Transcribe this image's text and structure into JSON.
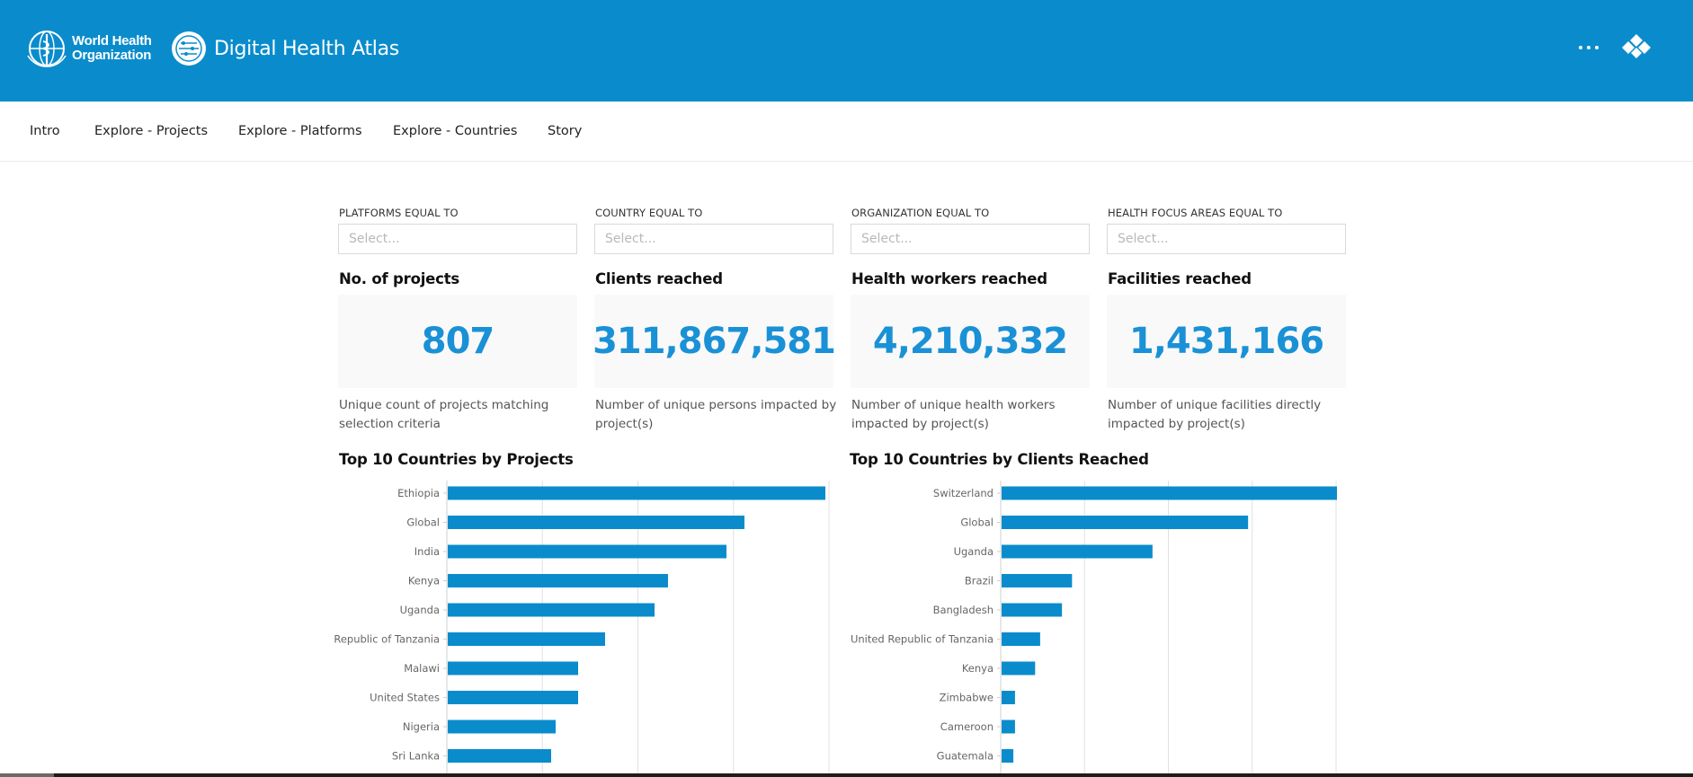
{
  "header": {
    "who_line1": "World Health",
    "who_line2": "Organization",
    "app_title": "Digital Health Atlas",
    "accent": "#0a8ccc",
    "icons": [
      "who-emblem-icon",
      "atlas-logo-icon",
      "more-options-icon",
      "brand-diamond-icon"
    ]
  },
  "nav": {
    "items": [
      {
        "label": "Intro"
      },
      {
        "label": "Explore - Projects"
      },
      {
        "label": "Explore - Platforms"
      },
      {
        "label": "Explore - Countries"
      },
      {
        "label": "Story"
      }
    ]
  },
  "filters": [
    {
      "label": "PLATFORMS EQUAL TO",
      "placeholder": "Select..."
    },
    {
      "label": "COUNTRY EQUAL TO",
      "placeholder": "Select..."
    },
    {
      "label": "ORGANIZATION EQUAL TO",
      "placeholder": "Select..."
    },
    {
      "label": "HEALTH FOCUS AREAS EQUAL TO",
      "placeholder": "Select..."
    }
  ],
  "kpis": [
    {
      "title": "No. of projects",
      "value": "807",
      "description": "Unique count of projects matching selection criteria"
    },
    {
      "title": "Clients reached",
      "value": "311,867,581",
      "description": "Number of unique persons impacted by project(s)"
    },
    {
      "title": "Health workers reached",
      "value": "4,210,332",
      "description": "Number of unique health workers impacted by project(s)"
    },
    {
      "title": "Facilities reached",
      "value": "1,431,166",
      "description": "Number of unique facilities directly impacted by project(s)"
    }
  ],
  "chart_data": [
    {
      "type": "bar",
      "orientation": "horizontal",
      "title": "Top 10 Countries by Projects",
      "categories": [
        "Ethiopia",
        "Global",
        "India",
        "Kenya",
        "Uganda",
        "Republic of Tanzania",
        "Malawi",
        "United States",
        "Nigeria",
        "Sri Lanka"
      ],
      "values": [
        84,
        66,
        62,
        49,
        46,
        35,
        29,
        29,
        24,
        23
      ],
      "xlim": [
        0,
        85
      ],
      "grid": true,
      "bar_color": "#0a8ccc"
    },
    {
      "type": "bar",
      "orientation": "horizontal",
      "title": "Top 10 Countries by Clients Reached",
      "categories": [
        "Switzerland",
        "Global",
        "Uganda",
        "Brazil",
        "Bangladesh",
        "United Republic of Tanzania",
        "Kenya",
        "Zimbabwe",
        "Cameroon",
        "Guatemala"
      ],
      "values": [
        100,
        73.5,
        45,
        21,
        18,
        11.5,
        10,
        4,
        4,
        3.5
      ],
      "xlim": [
        0,
        100
      ],
      "grid": true,
      "bar_color": "#0a8ccc"
    }
  ]
}
